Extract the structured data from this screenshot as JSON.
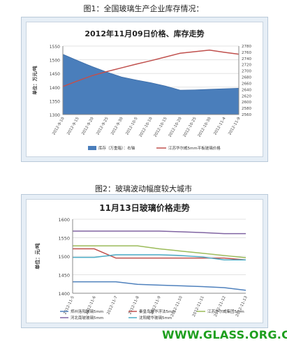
{
  "captions": {
    "fig1": "图1：全国玻璃生产企业库存情况：",
    "fig2": "图2：玻璃波动幅度较大城市"
  },
  "watermark": "WWW.GLASS.ORG.CN",
  "colors": {
    "area": "#4a7ebb",
    "line1": "#c0504d",
    "axis": "#888888",
    "panel_bg": "#e6eef6",
    "zhengzhou": "#4f81bd",
    "qinhuangdao": "#c0504d",
    "jiangsu_huaer": "#9bbb59",
    "hebei": "#8064a2",
    "shenyang": "#4bacc6",
    "watermark": "#1e9f1e"
  },
  "chart_data": [
    {
      "type": "area",
      "title": "2012年11月09日价格、库存走势",
      "ylabel_left": "单位：万元/吨",
      "y_left_lim": [
        1300,
        1550
      ],
      "y_left_ticks": [
        "1300",
        "1350",
        "1400",
        "1450",
        "1500",
        "1550"
      ],
      "y_right_lim": [
        2560,
        2780
      ],
      "y_right_ticks": [
        "2560",
        "2580",
        "2600",
        "2620",
        "2640",
        "2660",
        "2680",
        "2700",
        "2720",
        "2740",
        "2760",
        "2780"
      ],
      "categories": [
        "2012-9-10",
        "2012-9-15",
        "2012-9-20",
        "2012-9-25",
        "2012-9-30",
        "2012-10-5",
        "2012-10-10",
        "2012-10-15",
        "2012-10-20",
        "2012-10-25",
        "2012-10-30",
        "2012-11-4",
        "2012-11-9"
      ],
      "series": [
        {
          "name": "库存（万重箱）：右轴",
          "axis": "left",
          "kind": "area",
          "values": [
            1520,
            1497,
            1475,
            1455,
            1437,
            1426,
            1416,
            1404,
            1389,
            1390,
            1392,
            1394,
            1396
          ]
        },
        {
          "name": "江苏华尔威5mm平板玻璃价格",
          "axis": "right",
          "kind": "line",
          "values": [
            2650,
            2668,
            2685,
            2698,
            2710,
            2722,
            2733,
            2745,
            2757,
            2762,
            2767,
            2760,
            2754
          ]
        }
      ]
    },
    {
      "type": "line",
      "title": "11月13日玻璃价格走势",
      "ylabel": "单位：元/吨",
      "ylim": [
        1400,
        1600
      ],
      "y_ticks": [
        "1400",
        "1450",
        "1500",
        "1550",
        "1600"
      ],
      "categories": [
        "2012-11-5",
        "2012-11-6",
        "2012-11-7",
        "2012-11-8",
        "2012-11-9",
        "2012-11-10",
        "2012-11-11",
        "2012-11-12",
        "2012-11-13"
      ],
      "series": [
        {
          "name": "郑州洛阳玻璃5mm",
          "color_key": "zhengzhou",
          "values": [
            1431,
            1431,
            1431,
            1424,
            1422,
            1420,
            1418,
            1415,
            1408
          ]
        },
        {
          "name": "秦皇岛耀华浮法5mm",
          "color_key": "qinhuangdao",
          "values": [
            1520,
            1520,
            1495,
            1495,
            1495,
            1495,
            1495,
            1495,
            1490
          ]
        },
        {
          "name": "江苏华尔威集团5mm",
          "color_key": "jiangsu_huaer",
          "values": [
            1528,
            1528,
            1528,
            1528,
            1520,
            1514,
            1508,
            1502,
            1496
          ]
        },
        {
          "name": "河北南玻玻璃5mm",
          "color_key": "hebei",
          "values": [
            1568,
            1568,
            1568,
            1568,
            1568,
            1566,
            1564,
            1561,
            1561
          ]
        },
        {
          "name": "沈阳耀华玻璃5mm",
          "color_key": "shenyang",
          "values": [
            1497,
            1497,
            1504,
            1504,
            1504,
            1502,
            1498,
            1490,
            1490
          ]
        }
      ]
    }
  ]
}
